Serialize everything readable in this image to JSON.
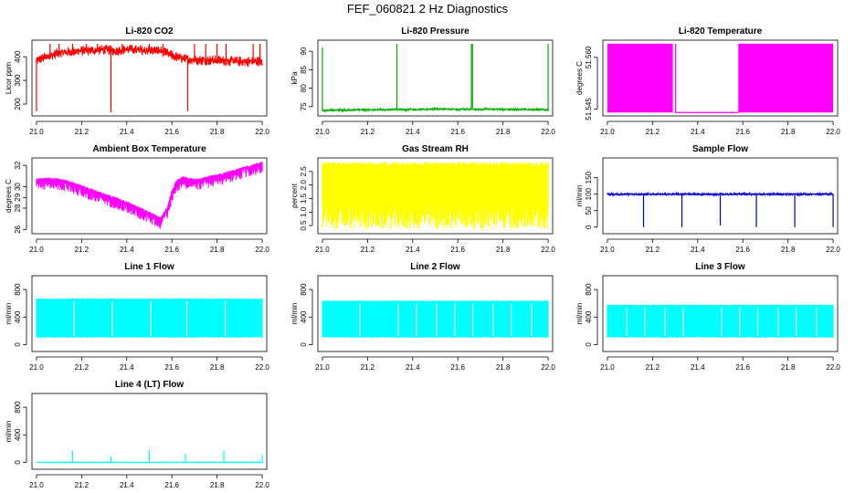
{
  "title": "FEF_060821  2 Hz Diagnostics",
  "chart_data": [
    {
      "type": "line",
      "title": "Li-820 CO2",
      "ylabel": "Licor ppm",
      "color": "#ff0000",
      "xlim": [
        20.98,
        22.02
      ],
      "ylim": [
        150,
        470
      ],
      "xticks": [
        "21.0",
        "21.2",
        "21.4",
        "21.6",
        "21.8",
        "22.0"
      ],
      "xtick_values": [
        21.0,
        21.2,
        21.4,
        21.6,
        21.8,
        22.0
      ],
      "yticks": [
        "200",
        "300",
        "400"
      ],
      "ytick_values": [
        200,
        300,
        400
      ],
      "series": [
        {
          "name": "CO2",
          "x": [
            21.0,
            21.05,
            21.1,
            21.15,
            21.2,
            21.25,
            21.3,
            21.35,
            21.4,
            21.45,
            21.5,
            21.55,
            21.6,
            21.65,
            21.7,
            21.75,
            21.8,
            21.85,
            21.9,
            21.95,
            22.0
          ],
          "values": [
            385,
            400,
            418,
            420,
            425,
            428,
            430,
            425,
            432,
            428,
            428,
            425,
            405,
            390,
            388,
            385,
            385,
            382,
            380,
            380,
            380
          ]
        }
      ],
      "noise": 22,
      "spikes": [
        {
          "x": 21.0,
          "to": 170
        },
        {
          "x": 21.33,
          "to": 165
        },
        {
          "x": 21.67,
          "to": 170
        },
        {
          "x": 21.06,
          "to": 455
        },
        {
          "x": 21.1,
          "to": 455
        },
        {
          "x": 21.16,
          "to": 455
        },
        {
          "x": 21.22,
          "to": 455
        },
        {
          "x": 21.27,
          "to": 455
        },
        {
          "x": 21.38,
          "to": 455
        },
        {
          "x": 21.5,
          "to": 455
        },
        {
          "x": 21.56,
          "to": 455
        },
        {
          "x": 21.7,
          "to": 455
        },
        {
          "x": 21.75,
          "to": 455
        },
        {
          "x": 21.8,
          "to": 455
        },
        {
          "x": 21.84,
          "to": 455
        },
        {
          "x": 21.96,
          "to": 455
        },
        {
          "x": 21.99,
          "to": 455
        }
      ]
    },
    {
      "type": "line",
      "title": "Li-820 Pressure",
      "ylabel": "kPa",
      "color": "#00b000",
      "xlim": [
        20.98,
        22.02
      ],
      "ylim": [
        72.5,
        93
      ],
      "xticks": [
        "21.0",
        "21.2",
        "21.4",
        "21.6",
        "21.8",
        "22.0"
      ],
      "xtick_values": [
        21.0,
        21.2,
        21.4,
        21.6,
        21.8,
        22.0
      ],
      "yticks": [
        "75",
        "80",
        "85",
        "90"
      ],
      "ytick_values": [
        75,
        80,
        85,
        90
      ],
      "series": [
        {
          "name": "Pressure",
          "x": [
            21.0,
            21.2,
            21.4,
            21.5,
            21.6,
            21.8,
            22.0
          ],
          "values": [
            74.0,
            74.2,
            74.2,
            74.4,
            74.3,
            74.3,
            74.2
          ]
        }
      ],
      "noise": 0.3,
      "spikes": [
        {
          "x": 21.0,
          "to": 91
        },
        {
          "x": 21.33,
          "to": 92
        },
        {
          "x": 21.66,
          "to": 92
        },
        {
          "x": 21.665,
          "to": 92
        },
        {
          "x": 22.0,
          "to": 92
        }
      ]
    },
    {
      "type": "area",
      "title": "Li-820 Temperature",
      "ylabel": "degrees C",
      "color": "#ff00ff",
      "xlim": [
        20.98,
        22.02
      ],
      "ylim": [
        51.543,
        51.565
      ],
      "xticks": [
        "21.0",
        "21.2",
        "21.4",
        "21.6",
        "21.8",
        "22.0"
      ],
      "xtick_values": [
        21.0,
        21.2,
        21.4,
        21.6,
        21.8,
        22.0
      ],
      "yticks": [
        "51.545",
        "51.560"
      ],
      "ytick_values": [
        51.545,
        51.56
      ],
      "filled_ranges": [
        [
          21.0,
          21.29
        ],
        [
          21.3,
          21.305
        ],
        [
          21.58,
          22.0
        ]
      ],
      "baseline": 51.544,
      "top": 51.564
    },
    {
      "type": "line",
      "title": "Ambient Box Temperature",
      "ylabel": "degrees C",
      "color": "#ff00ff",
      "xlim": [
        20.98,
        22.02
      ],
      "ylim": [
        25.6,
        32.7
      ],
      "xticks": [
        "21.0",
        "21.2",
        "21.4",
        "21.6",
        "21.8",
        "22.0"
      ],
      "xtick_values": [
        21.0,
        21.2,
        21.4,
        21.6,
        21.8,
        22.0
      ],
      "yticks": [
        "26",
        "28",
        "29",
        "30",
        "32"
      ],
      "ytick_values": [
        26,
        28,
        29,
        30,
        32
      ],
      "series": [
        {
          "name": "Ambient",
          "x": [
            21.0,
            21.05,
            21.1,
            21.15,
            21.2,
            21.25,
            21.3,
            21.35,
            21.4,
            21.45,
            21.5,
            21.53,
            21.55,
            21.58,
            21.6,
            21.62,
            21.65,
            21.7,
            21.75,
            21.8,
            21.85,
            21.9,
            21.95,
            22.0
          ],
          "values": [
            30.6,
            30.7,
            30.6,
            30.4,
            30.0,
            29.6,
            29.2,
            28.9,
            28.5,
            28.0,
            27.5,
            27.2,
            27.0,
            28.0,
            29.5,
            30.5,
            30.8,
            30.6,
            30.8,
            31.0,
            31.3,
            31.6,
            31.9,
            32.2
          ]
        }
      ],
      "noise": 0.6,
      "down_noise": true
    },
    {
      "type": "line",
      "title": "Gas Stream RH",
      "ylabel": "percent",
      "color": "#ffff00",
      "xlim": [
        20.98,
        22.02
      ],
      "ylim": [
        0.2,
        3.0
      ],
      "xticks": [
        "21.0",
        "21.2",
        "21.4",
        "21.6",
        "21.8",
        "22.0"
      ],
      "xtick_values": [
        21.0,
        21.2,
        21.4,
        21.6,
        21.8,
        22.0
      ],
      "yticks": [
        "0.5",
        "1.0",
        "1.5",
        "2.0",
        "2.5"
      ],
      "ytick_values": [
        0.5,
        1.0,
        1.5,
        2.0,
        2.5
      ],
      "band_low": 0.35,
      "band_high": 2.85,
      "dense_band": true
    },
    {
      "type": "line",
      "title": "Sample Flow",
      "ylabel": "ml/min",
      "color": "#0000d0",
      "xlim": [
        20.98,
        22.02
      ],
      "ylim": [
        -20,
        210
      ],
      "xticks": [
        "21.0",
        "21.2",
        "21.4",
        "21.6",
        "21.8",
        "22.0"
      ],
      "xtick_values": [
        21.0,
        21.2,
        21.4,
        21.6,
        21.8,
        22.0
      ],
      "yticks": [
        "0",
        "50",
        "100",
        "150"
      ],
      "ytick_values": [
        0,
        50,
        100,
        150
      ],
      "series": [
        {
          "name": "Sample",
          "x": [
            21.0,
            22.0
          ],
          "values": [
            100,
            100
          ]
        }
      ],
      "noise": 4,
      "spikes": [
        {
          "x": 21.16,
          "to": 0
        },
        {
          "x": 21.33,
          "to": 0
        },
        {
          "x": 21.5,
          "to": 5
        },
        {
          "x": 21.66,
          "to": 0
        },
        {
          "x": 21.83,
          "to": 0
        },
        {
          "x": 22.0,
          "to": 0
        }
      ]
    },
    {
      "type": "line",
      "title": "Line 1 Flow",
      "ylabel": "ml/min",
      "color": "#00ffff",
      "xlim": [
        20.98,
        22.02
      ],
      "ylim": [
        -100,
        1000
      ],
      "xticks": [
        "21.0",
        "21.2",
        "21.4",
        "21.6",
        "21.8",
        "22.0"
      ],
      "xtick_values": [
        21.0,
        21.2,
        21.4,
        21.6,
        21.8,
        22.0
      ],
      "yticks": [
        "0",
        "400",
        "800"
      ],
      "ytick_values": [
        0,
        400,
        800
      ],
      "band_low": 100,
      "band_high": 670,
      "gaps": [
        21.16,
        21.33,
        21.5,
        21.66,
        21.83,
        22.0
      ]
    },
    {
      "type": "line",
      "title": "Line 2 Flow",
      "ylabel": "ml/min",
      "color": "#00ffff",
      "xlim": [
        20.98,
        22.02
      ],
      "ylim": [
        -100,
        1000
      ],
      "xticks": [
        "21.0",
        "21.2",
        "21.4",
        "21.6",
        "21.8",
        "22.0"
      ],
      "xtick_values": [
        21.0,
        21.2,
        21.4,
        21.6,
        21.8,
        22.0
      ],
      "yticks": [
        "0",
        "400",
        "800"
      ],
      "ytick_values": [
        0,
        400,
        800
      ],
      "band_low": 100,
      "band_high": 640,
      "gaps": [
        21.16,
        21.33,
        21.41,
        21.5,
        21.58,
        21.66,
        21.75,
        21.83,
        21.92,
        22.0
      ]
    },
    {
      "type": "line",
      "title": "Line 3 Flow",
      "ylabel": "ml/min",
      "color": "#00ffff",
      "xlim": [
        20.98,
        22.02
      ],
      "ylim": [
        -100,
        1000
      ],
      "xticks": [
        "21.0",
        "21.2",
        "21.4",
        "21.6",
        "21.8",
        "22.0"
      ],
      "xtick_values": [
        21.0,
        21.2,
        21.4,
        21.6,
        21.8,
        22.0
      ],
      "yticks": [
        "0",
        "400",
        "800"
      ],
      "ytick_values": [
        0,
        400,
        800
      ],
      "band_low": 100,
      "band_high": 580,
      "gaps": [
        21.08,
        21.16,
        21.25,
        21.33,
        21.5,
        21.58,
        21.66,
        21.75,
        21.83,
        21.92,
        22.0
      ]
    },
    {
      "type": "line",
      "title": "Line 4 (LT) Flow",
      "ylabel": "ml/min",
      "color": "#00ffff",
      "xlim": [
        20.98,
        22.02
      ],
      "ylim": [
        -100,
        1000
      ],
      "xticks": [
        "21.0",
        "21.2",
        "21.4",
        "21.6",
        "21.8",
        "22.0"
      ],
      "xtick_values": [
        21.0,
        21.2,
        21.4,
        21.6,
        21.8,
        22.0
      ],
      "yticks": [
        "0",
        "400",
        "800"
      ],
      "ytick_values": [
        0,
        400,
        800
      ],
      "series": [
        {
          "name": "Line4",
          "x": [
            21.0,
            22.0
          ],
          "values": [
            0,
            0
          ]
        }
      ],
      "noise": 3,
      "spikes": [
        {
          "x": 21.16,
          "to": 170
        },
        {
          "x": 21.33,
          "to": 90
        },
        {
          "x": 21.5,
          "to": 180
        },
        {
          "x": 21.66,
          "to": 120
        },
        {
          "x": 21.83,
          "to": 170
        },
        {
          "x": 22.0,
          "to": 110
        }
      ]
    }
  ]
}
